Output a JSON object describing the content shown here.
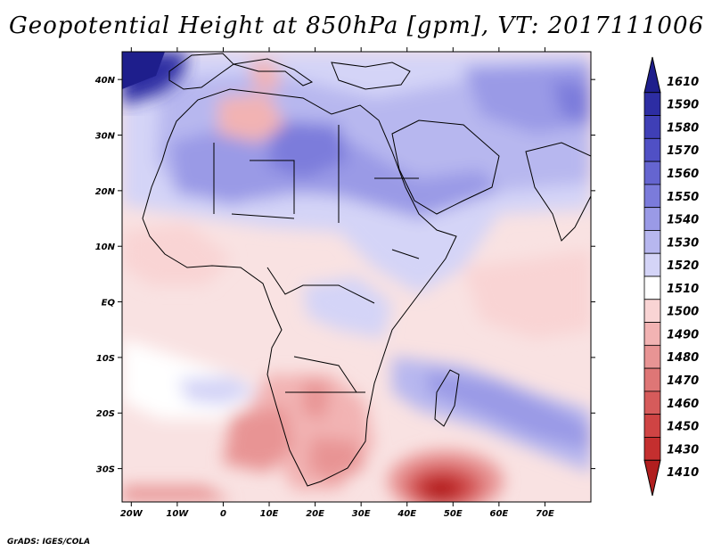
{
  "title": "Geopotential Height at 850hPa [gpm], VT: 2017111006",
  "footer": "GrADS: IGES/COLA",
  "map": {
    "lon_range": [
      -22,
      80
    ],
    "lat_range": [
      -36,
      45
    ],
    "lon_ticks": [
      {
        "value": -20,
        "label": "20W"
      },
      {
        "value": -10,
        "label": "10W"
      },
      {
        "value": 0,
        "label": "0"
      },
      {
        "value": 10,
        "label": "10E"
      },
      {
        "value": 20,
        "label": "20E"
      },
      {
        "value": 30,
        "label": "30E"
      },
      {
        "value": 40,
        "label": "40E"
      },
      {
        "value": 50,
        "label": "50E"
      },
      {
        "value": 60,
        "label": "60E"
      },
      {
        "value": 70,
        "label": "70E"
      }
    ],
    "lat_ticks": [
      {
        "value": 40,
        "label": "40N"
      },
      {
        "value": 30,
        "label": "30N"
      },
      {
        "value": 20,
        "label": "20N"
      },
      {
        "value": 10,
        "label": "10N"
      },
      {
        "value": 0,
        "label": "EQ"
      },
      {
        "value": -10,
        "label": "10S"
      },
      {
        "value": -20,
        "label": "20S"
      },
      {
        "value": -30,
        "label": "30S"
      }
    ]
  },
  "colorbar": {
    "levels": [
      "1610",
      "1590",
      "1580",
      "1570",
      "1560",
      "1550",
      "1540",
      "1530",
      "1520",
      "1510",
      "1500",
      "1490",
      "1480",
      "1470",
      "1460",
      "1450",
      "1430",
      "1410"
    ],
    "colors": [
      "#1e1e8c",
      "#2d2da3",
      "#3f3fb6",
      "#5050c5",
      "#6565d0",
      "#7b7bdb",
      "#9a9ae6",
      "#b7b7ef",
      "#d4d4f7",
      "#ffffff",
      "#f9d4d4",
      "#f2b3b3",
      "#e89494",
      "#de7676",
      "#d65b5b",
      "#cf4444",
      "#c42f2f",
      "#b01e1e"
    ]
  }
}
